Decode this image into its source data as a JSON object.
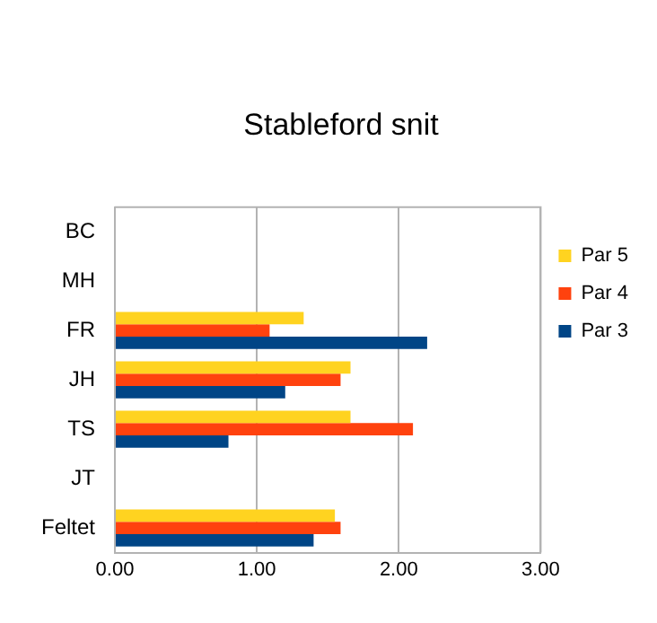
{
  "chart_data": {
    "type": "bar",
    "orientation": "horizontal",
    "title": "Stableford snit",
    "categories": [
      "BC",
      "MH",
      "FR",
      "JH",
      "TS",
      "JT",
      "Feltet"
    ],
    "series": [
      {
        "name": "Par 5",
        "color": "#ffd320",
        "values": [
          null,
          null,
          1.33,
          1.66,
          1.66,
          null,
          1.55
        ]
      },
      {
        "name": "Par 4",
        "color": "#ff420e",
        "values": [
          null,
          null,
          1.09,
          1.59,
          2.1,
          null,
          1.59
        ]
      },
      {
        "name": "Par 3",
        "color": "#004586",
        "values": [
          null,
          null,
          2.2,
          1.2,
          0.8,
          null,
          1.4
        ]
      }
    ],
    "xlim": [
      0,
      3
    ],
    "xticks": [
      {
        "value": 0,
        "label": "0.00"
      },
      {
        "value": 1,
        "label": "1.00"
      },
      {
        "value": 2,
        "label": "2.00"
      },
      {
        "value": 3,
        "label": "3.00"
      }
    ],
    "grid": "x",
    "legend": "right"
  }
}
